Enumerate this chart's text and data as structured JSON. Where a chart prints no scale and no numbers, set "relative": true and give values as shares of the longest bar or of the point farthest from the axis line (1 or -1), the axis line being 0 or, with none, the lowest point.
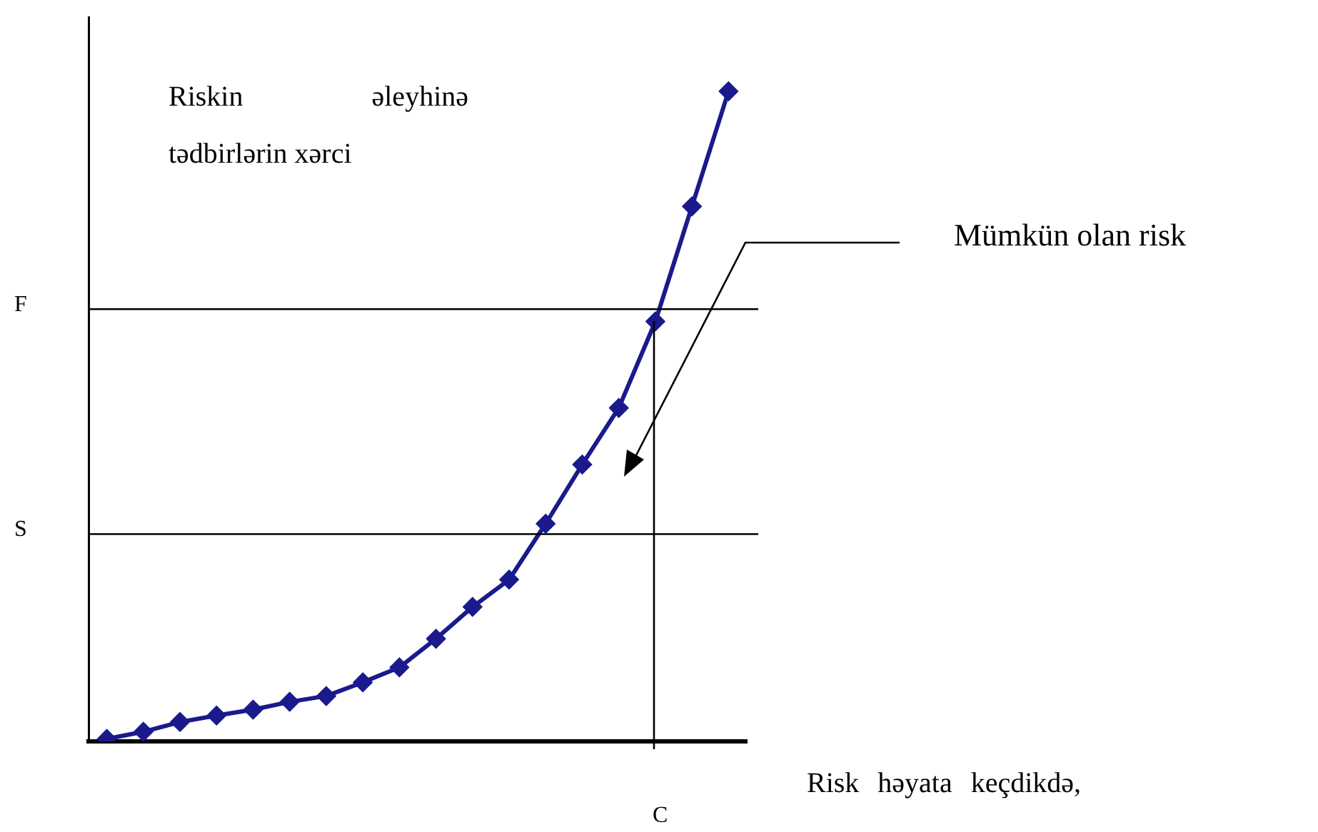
{
  "chart_data": {
    "type": "line",
    "relative": true,
    "ylabel": "Riskin əleyhinə tədbirlərin xərci",
    "xlabel": "Risk həyata keçdikdə,",
    "categories": [
      null,
      null,
      null,
      null,
      null,
      null,
      null,
      null,
      null,
      null,
      null,
      null,
      null,
      null,
      null,
      null,
      null,
      null
    ],
    "series": [
      {
        "color": "#1a1a8c",
        "values": [
          0.004,
          0.015,
          0.03,
          0.04,
          0.049,
          0.061,
          0.07,
          0.091,
          0.114,
          0.158,
          0.207,
          0.249,
          0.335,
          0.426,
          0.513,
          0.646,
          0.823,
          1
        ]
      }
    ],
    "marker": "diamond",
    "line_style": "solid",
    "legend": false,
    "ref_lines": [
      {
        "axis": "y",
        "value": 0.665,
        "label": "F",
        "color": "#000000"
      },
      {
        "axis": "y",
        "value": 0.319,
        "label": "S",
        "color": "#000000"
      }
    ],
    "annotations": [
      "Mümkün olan risk",
      "C"
    ]
  }
}
